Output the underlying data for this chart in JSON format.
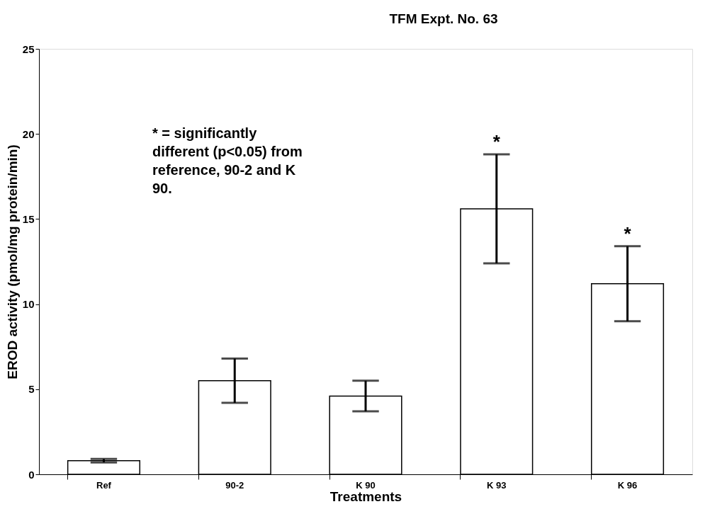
{
  "chart_data": {
    "type": "bar",
    "title": "TFM Expt. No. 63",
    "xlabel": "Treatments",
    "ylabel": "EROD activity (pmol/mg protein/min)",
    "categories": [
      "Ref",
      "90-2",
      "K 90",
      "K 93",
      "K 96"
    ],
    "values": [
      0.8,
      5.5,
      4.6,
      15.6,
      11.2
    ],
    "errors": [
      0.1,
      1.3,
      0.9,
      3.2,
      2.2
    ],
    "color": "#ffffff",
    "value_labels": [
      null,
      null,
      null,
      "*",
      "*"
    ],
    "ylim": [
      0,
      25
    ],
    "yticks": [
      0,
      5,
      10,
      15,
      20,
      25
    ],
    "grid": false,
    "annotations": [
      "* = significantly different (p<0.05) from reference, 90-2 and K 90."
    ]
  }
}
